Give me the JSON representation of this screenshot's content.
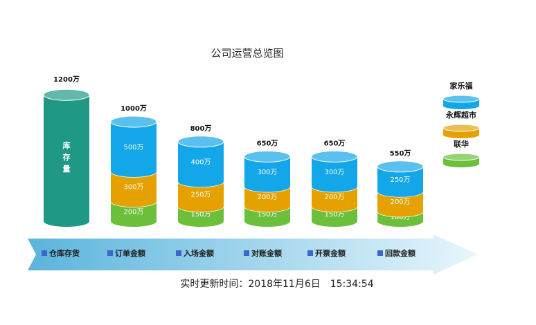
{
  "chart_data": {
    "type": "bar",
    "title": "公司运营总览图",
    "unit": "万",
    "inventory": {
      "label": "库存量",
      "value": 1200,
      "total_label": "1200万",
      "color": "#1f9985"
    },
    "categories": [
      "订单金额",
      "入场金额",
      "对账金额",
      "开票金额",
      "回款金额"
    ],
    "totals": [
      "1000万",
      "800万",
      "650万",
      "650万",
      "550万"
    ],
    "series": [
      {
        "name": "联华",
        "color": "#6bbf3a",
        "values": [
          200,
          150,
          150,
          150,
          100
        ]
      },
      {
        "name": "永辉超市",
        "color": "#e4a100",
        "values": [
          300,
          250,
          200,
          200,
          200
        ]
      },
      {
        "name": "家乐福",
        "color": "#13a6e8",
        "values": [
          500,
          400,
          300,
          300,
          250
        ]
      }
    ],
    "legend_order": [
      "家乐福",
      "永辉超市",
      "联华"
    ],
    "legend_position": "right",
    "process_steps": [
      "仓库存货",
      "订单金额",
      "入场金额",
      "对账金额",
      "开票金额",
      "回款金额"
    ],
    "updated_label": "实时更新时间：2018年11月6日　15:34:54"
  },
  "colors": {
    "arrow_start": "#5ab4dc",
    "arrow_end": "#e8f6fc",
    "step_marker": "#3a68c8"
  }
}
